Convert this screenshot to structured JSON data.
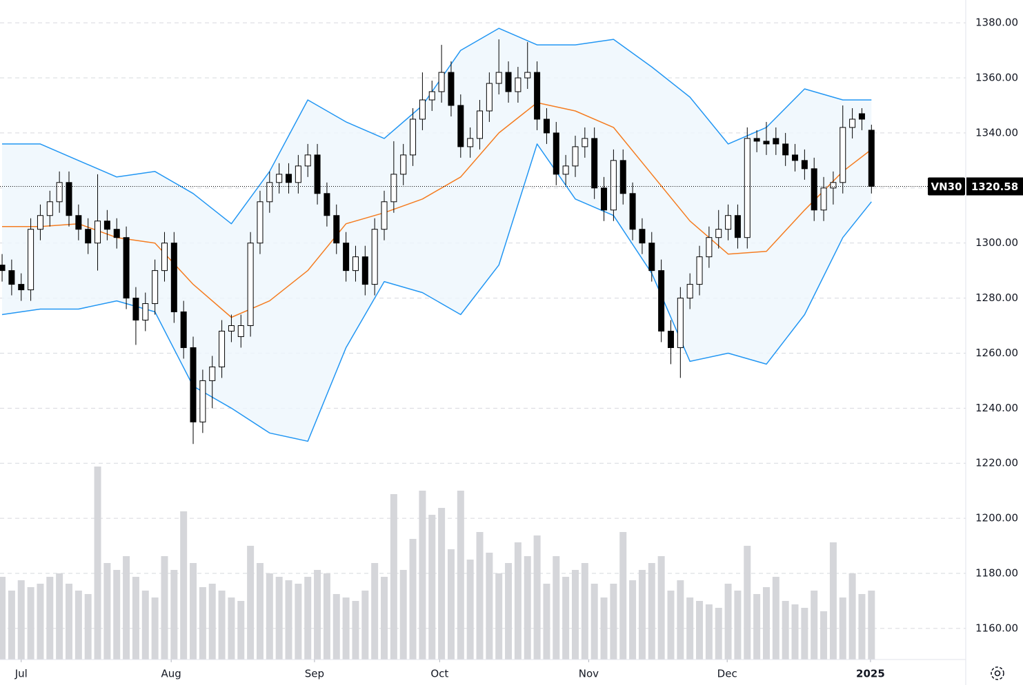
{
  "chart_data": {
    "type": "candlestick",
    "symbol": "VN30",
    "last_price": 1320.58,
    "xlim": [
      -0.22,
      100.87
    ],
    "ylim": [
      1148.7,
      1388.3
    ],
    "volume_lim": [
      0,
      400
    ],
    "grid": true,
    "up_color": "#ffffff",
    "down_color": "#000000",
    "volume_color": "#d5d6da",
    "band_color": "#2196f3",
    "band_fill": "#eef6fd",
    "middle_color": "#f57c20",
    "yticks": [
      {
        "value": 1160,
        "label": "1160.00"
      },
      {
        "value": 1180,
        "label": "1180.00"
      },
      {
        "value": 1200,
        "label": "1200.00"
      },
      {
        "value": 1220,
        "label": "1220.00"
      },
      {
        "value": 1240,
        "label": "1240.00"
      },
      {
        "value": 1260,
        "label": "1260.00"
      },
      {
        "value": 1280,
        "label": "1280.00"
      },
      {
        "value": 1300,
        "label": "1300.00"
      },
      {
        "value": 1320,
        "label": "1320.00"
      },
      {
        "value": 1340,
        "label": "1340.00"
      },
      {
        "value": 1360,
        "label": "1360.00"
      },
      {
        "value": 1380,
        "label": "1380.00"
      }
    ],
    "xticks": [
      {
        "value": 2,
        "label": "Jul"
      },
      {
        "value": 17.7,
        "label": "Aug"
      },
      {
        "value": 32.7,
        "label": "Sep"
      },
      {
        "value": 45.8,
        "label": "Oct"
      },
      {
        "value": 61.4,
        "label": "Nov"
      },
      {
        "value": 75.9,
        "label": "Dec"
      },
      {
        "value": 90.9,
        "label": "2025",
        "bold": true
      }
    ],
    "open": [
      1292,
      1290,
      1285,
      1283,
      1305,
      1310,
      1315,
      1322,
      1310,
      1305,
      1300,
      1308,
      1305,
      1302,
      1280,
      1272,
      1278,
      1290,
      1300,
      1275,
      1262,
      1235,
      1250,
      1255,
      1268,
      1266,
      1270,
      1300,
      1315,
      1322,
      1325,
      1322,
      1328,
      1332,
      1318,
      1310,
      1300,
      1290,
      1295,
      1285,
      1305,
      1315,
      1325,
      1332,
      1345,
      1352,
      1355,
      1362,
      1350,
      1335,
      1338,
      1348,
      1358,
      1362,
      1355,
      1360,
      1362,
      1345,
      1340,
      1325,
      1328,
      1335,
      1338,
      1320,
      1312,
      1330,
      1318,
      1305,
      1300,
      1290,
      1268,
      1262,
      1280,
      1285,
      1295,
      1302,
      1305,
      1310,
      1302,
      1338,
      1337,
      1338,
      1336,
      1332,
      1330,
      1327,
      1312,
      1320,
      1322,
      1342,
      1347,
      1341
    ],
    "high": [
      1296,
      1294,
      1289,
      1309,
      1314,
      1319,
      1326,
      1326,
      1314,
      1309,
      1325,
      1312,
      1309,
      1306,
      1284,
      1282,
      1294,
      1304,
      1304,
      1279,
      1266,
      1254,
      1259,
      1272,
      1274,
      1274,
      1304,
      1319,
      1326,
      1329,
      1329,
      1332,
      1336,
      1336,
      1322,
      1314,
      1304,
      1299,
      1299,
      1309,
      1319,
      1337,
      1336,
      1349,
      1362,
      1359,
      1372,
      1366,
      1354,
      1342,
      1352,
      1362,
      1374,
      1366,
      1364,
      1373,
      1366,
      1349,
      1344,
      1332,
      1339,
      1342,
      1342,
      1324,
      1334,
      1334,
      1322,
      1309,
      1304,
      1294,
      1272,
      1284,
      1289,
      1299,
      1306,
      1312,
      1314,
      1314,
      1342,
      1341,
      1344,
      1342,
      1340,
      1336,
      1334,
      1331,
      1324,
      1326,
      1350,
      1349,
      1349,
      1343
    ],
    "low": [
      1286,
      1281,
      1279,
      1279,
      1301,
      1306,
      1311,
      1306,
      1301,
      1296,
      1290,
      1301,
      1298,
      1276,
      1263,
      1268,
      1274,
      1286,
      1271,
      1258,
      1227,
      1231,
      1240,
      1251,
      1264,
      1262,
      1266,
      1296,
      1311,
      1318,
      1318,
      1318,
      1324,
      1314,
      1306,
      1296,
      1286,
      1286,
      1281,
      1281,
      1301,
      1311,
      1321,
      1328,
      1341,
      1348,
      1351,
      1346,
      1331,
      1331,
      1334,
      1344,
      1354,
      1351,
      1351,
      1356,
      1341,
      1336,
      1321,
      1321,
      1324,
      1331,
      1316,
      1308,
      1308,
      1314,
      1301,
      1296,
      1286,
      1264,
      1256,
      1251,
      1276,
      1281,
      1291,
      1298,
      1301,
      1298,
      1298,
      1333,
      1332,
      1332,
      1328,
      1326,
      1323,
      1308,
      1308,
      1314,
      1318,
      1338,
      1341,
      1318
    ],
    "close": [
      1290,
      1285,
      1283,
      1305,
      1310,
      1315,
      1322,
      1310,
      1305,
      1300,
      1308,
      1305,
      1302,
      1280,
      1272,
      1278,
      1290,
      1300,
      1275,
      1262,
      1235,
      1250,
      1255,
      1268,
      1270,
      1270,
      1300,
      1315,
      1322,
      1325,
      1322,
      1328,
      1332,
      1318,
      1310,
      1300,
      1290,
      1295,
      1285,
      1305,
      1315,
      1325,
      1332,
      1345,
      1352,
      1355,
      1362,
      1350,
      1335,
      1338,
      1348,
      1358,
      1362,
      1355,
      1360,
      1362,
      1345,
      1340,
      1325,
      1328,
      1335,
      1338,
      1320,
      1312,
      1330,
      1318,
      1305,
      1300,
      1290,
      1268,
      1262,
      1280,
      1285,
      1295,
      1302,
      1305,
      1310,
      1302,
      1338,
      1337,
      1336,
      1336,
      1332,
      1330,
      1327,
      1312,
      1320,
      1322,
      1342,
      1345,
      1345,
      1320.58
    ],
    "volume": [
      120,
      100,
      115,
      105,
      110,
      120,
      125,
      110,
      100,
      95,
      280,
      140,
      130,
      150,
      120,
      100,
      90,
      150,
      130,
      215,
      140,
      105,
      110,
      100,
      90,
      85,
      165,
      140,
      125,
      120,
      115,
      110,
      120,
      130,
      125,
      95,
      90,
      85,
      100,
      140,
      120,
      240,
      130,
      175,
      245,
      210,
      220,
      160,
      245,
      145,
      185,
      155,
      125,
      140,
      170,
      150,
      180,
      110,
      150,
      120,
      130,
      140,
      110,
      90,
      110,
      185,
      115,
      130,
      140,
      150,
      100,
      115,
      90,
      85,
      80,
      75,
      110,
      100,
      165,
      95,
      105,
      120,
      85,
      80,
      75,
      100,
      70,
      170,
      90,
      125,
      95,
      100
    ],
    "bands": {
      "x": [
        0,
        4,
        8,
        12,
        16,
        20,
        24,
        28,
        32,
        36,
        40,
        44,
        48,
        52,
        56,
        60,
        64,
        68,
        72,
        76,
        80,
        84,
        88,
        91
      ],
      "upper": [
        1336,
        1336,
        1330,
        1324,
        1326,
        1318,
        1307,
        1326,
        1352,
        1344,
        1338,
        1350,
        1370,
        1378,
        1372,
        1372,
        1374,
        1364,
        1353,
        1336,
        1342,
        1356,
        1352,
        1352
      ],
      "middle": [
        1306,
        1306,
        1307,
        1302,
        1300,
        1285,
        1273,
        1279,
        1290,
        1307,
        1311,
        1316,
        1324,
        1340,
        1351,
        1348,
        1342,
        1325,
        1308,
        1296,
        1297,
        1312,
        1326,
        1334
      ],
      "lower": [
        1274,
        1276,
        1276,
        1279,
        1275,
        1248,
        1240,
        1231,
        1228,
        1262,
        1286,
        1282,
        1274,
        1292,
        1336,
        1316,
        1310,
        1289,
        1257,
        1260,
        1256,
        1274,
        1302,
        1315
      ]
    }
  }
}
